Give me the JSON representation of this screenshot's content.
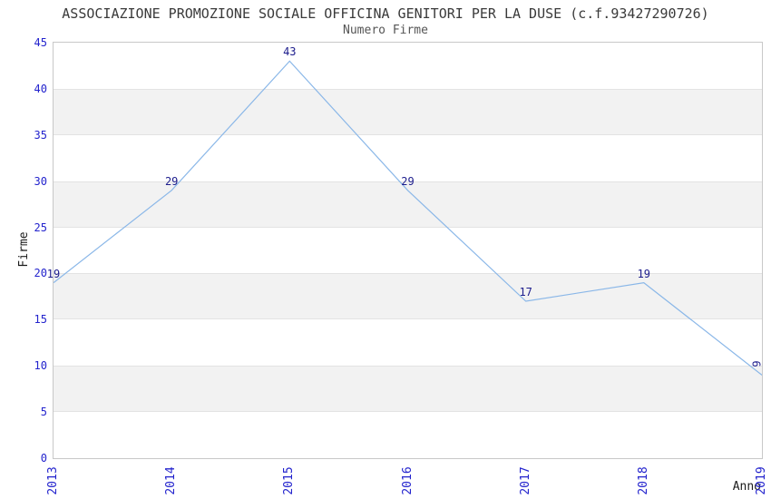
{
  "window": {
    "background": "#ffffff"
  },
  "chart_data": {
    "type": "line",
    "title": "ASSOCIAZIONE PROMOZIONE SOCIALE OFFICINA GENITORI PER LA DUSE (c.f.93427290726)",
    "subtitle": "Numero Firme",
    "xlabel": "Anno",
    "ylabel": "Firme",
    "categories": [
      "2013",
      "2014",
      "2015",
      "2016",
      "2017",
      "2018",
      "2019"
    ],
    "series": [
      {
        "name": "Numero Firme",
        "values": [
          19,
          29,
          43,
          29,
          17,
          19,
          9
        ]
      }
    ],
    "point_labels": [
      "19",
      "29",
      "43",
      "29",
      "17",
      "19",
      "9"
    ],
    "point_label_rotation": [
      0,
      0,
      0,
      0,
      0,
      0,
      -90
    ],
    "ylim": [
      0,
      45
    ],
    "ytick_step": 5,
    "yticks": [
      0,
      5,
      10,
      15,
      20,
      25,
      30,
      35,
      40,
      45
    ],
    "grid": "horizontal-alternating-bands",
    "band_ranges": [
      [
        5,
        10
      ],
      [
        15,
        20
      ],
      [
        25,
        30
      ],
      [
        35,
        40
      ]
    ],
    "legend_position": "none",
    "colors": {
      "line": "#8ab7e8",
      "tick_label": "#2323cd",
      "point_label": "#1c1c8c",
      "band_fill": "#f2f2f2",
      "band_border": "#e3e3e3",
      "plot_border": "#c8c8c8",
      "title": "#3a3a3a",
      "subtitle": "#555555",
      "axis_title": "#1a1a1a"
    }
  }
}
